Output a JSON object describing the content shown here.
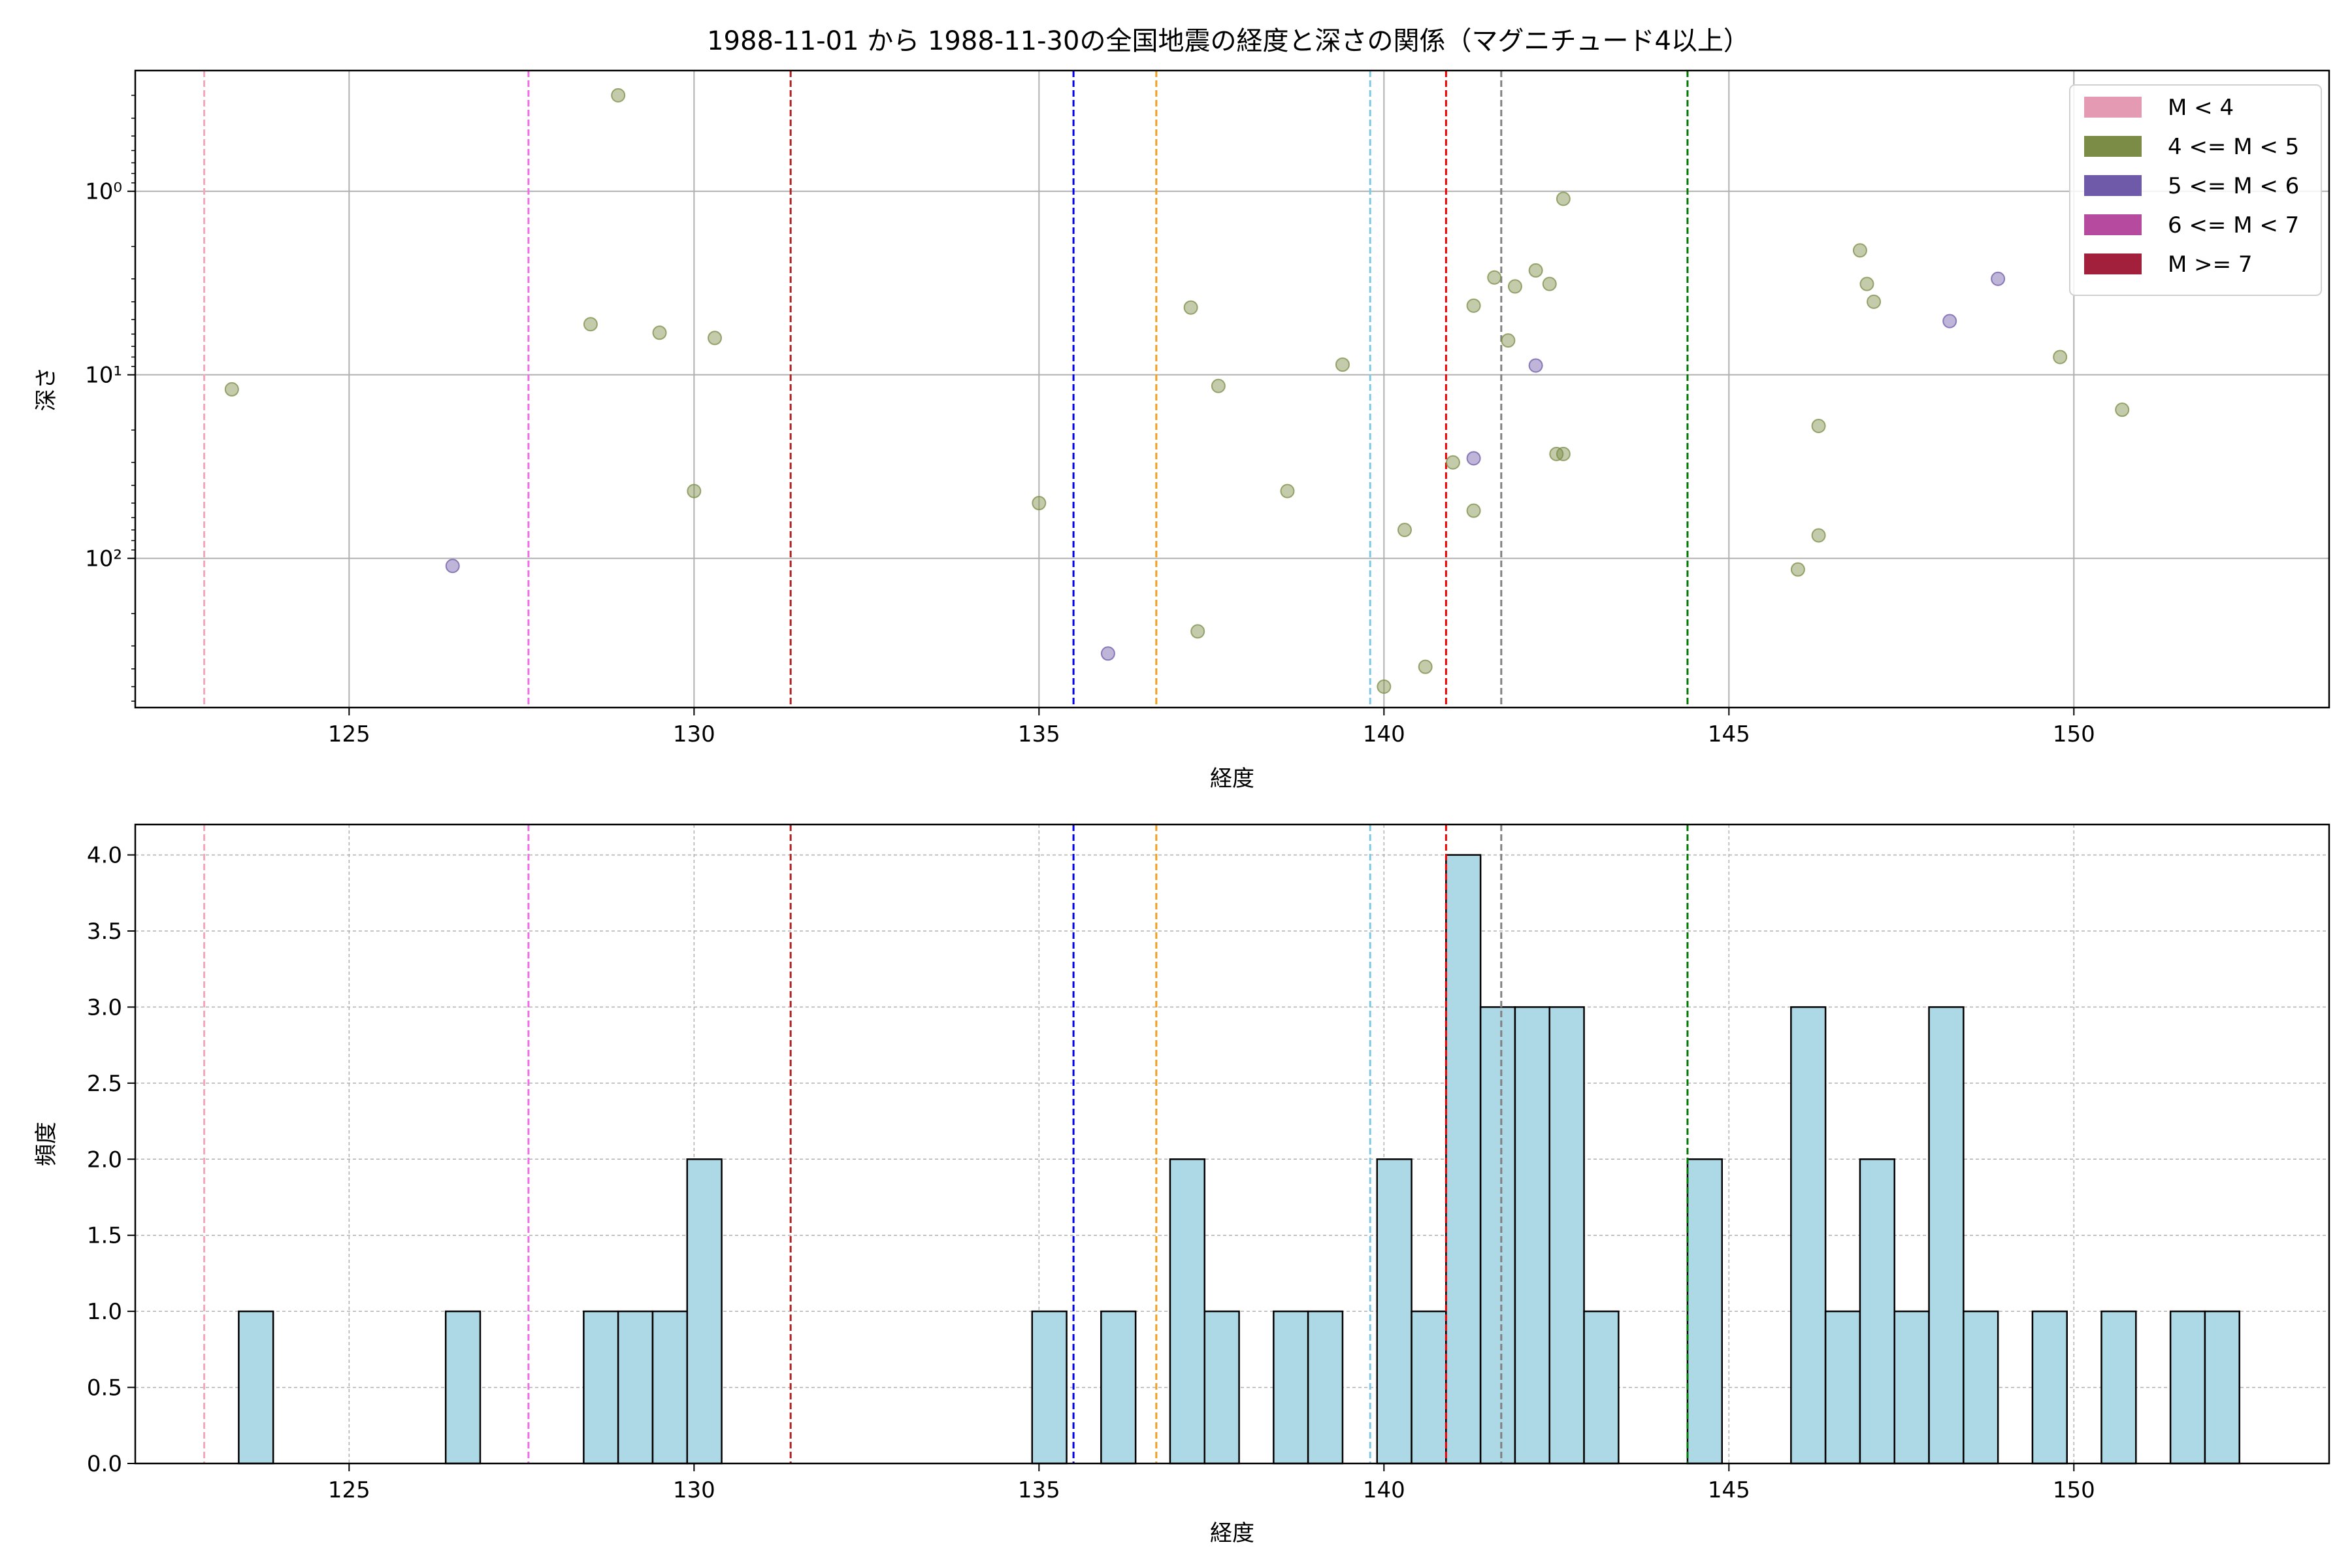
{
  "figure": {
    "title": "1988-11-01 から 1988-11-30の全国地震の経度と深さの関係（マグニチュード4以上）"
  },
  "colors": {
    "scatter_m4_5": "#7a8c45",
    "scatter_m5_6": "#6e5aa8",
    "hist_fill": "#add8e6",
    "hist_edge": "#000000"
  },
  "chart_data": [
    {
      "type": "scatter",
      "xlabel": "経度",
      "ylabel": "深さ",
      "xlim": [
        121.9,
        153.7
      ],
      "ylim": [
        650,
        0.22
      ],
      "y_scale": "log",
      "y_inverted": true,
      "x_ticks": [
        125,
        130,
        135,
        140,
        145,
        150
      ],
      "y_ticks": [
        {
          "value": 1,
          "label": "10⁰"
        },
        {
          "value": 10,
          "label": "10¹"
        },
        {
          "value": 100,
          "label": "10²"
        }
      ],
      "grid": true,
      "legend": {
        "placement": "top-right",
        "entries": [
          {
            "label": "M < 4",
            "color": "#e59ab3"
          },
          {
            "label": "4 <= M < 5",
            "color": "#7a8c45"
          },
          {
            "label": "5 <= M < 6",
            "color": "#6e5aa8"
          },
          {
            "label": "6 <= M < 7",
            "color": "#b54a9e"
          },
          {
            "label": "M >= 7",
            "color": "#a3203d"
          }
        ]
      },
      "vlines": [
        {
          "x": 122.9,
          "color": "#f4a6bb"
        },
        {
          "x": 127.6,
          "color": "#ee6ee6"
        },
        {
          "x": 131.4,
          "color": "#b22222"
        },
        {
          "x": 135.5,
          "color": "#0000ee"
        },
        {
          "x": 136.7,
          "color": "#f0a020"
        },
        {
          "x": 139.8,
          "color": "#7ec8e3"
        },
        {
          "x": 140.9,
          "color": "#ee0000"
        },
        {
          "x": 141.7,
          "color": "#808080"
        },
        {
          "x": 144.4,
          "color": "#007700"
        }
      ],
      "series": [
        {
          "class": "4 <= M < 5",
          "points": [
            [
              123.3,
              12
            ],
            [
              128.5,
              5.3
            ],
            [
              128.9,
              0.3
            ],
            [
              129.5,
              5.9
            ],
            [
              130.0,
              43
            ],
            [
              130.3,
              6.3
            ],
            [
              135.0,
              50
            ],
            [
              137.2,
              4.3
            ],
            [
              137.3,
              250
            ],
            [
              137.6,
              11.5
            ],
            [
              138.6,
              43
            ],
            [
              139.4,
              8.8
            ],
            [
              140.0,
              500
            ],
            [
              140.3,
              70
            ],
            [
              140.6,
              390
            ],
            [
              141.0,
              30
            ],
            [
              141.3,
              4.2
            ],
            [
              141.3,
              55
            ],
            [
              141.6,
              2.95
            ],
            [
              141.8,
              6.5
            ],
            [
              141.9,
              3.3
            ],
            [
              142.2,
              2.7
            ],
            [
              142.4,
              3.2
            ],
            [
              142.5,
              27
            ],
            [
              142.6,
              27
            ],
            [
              142.6,
              1.1
            ],
            [
              146.0,
              115
            ],
            [
              146.3,
              75
            ],
            [
              146.3,
              19
            ],
            [
              146.9,
              2.1
            ],
            [
              147.0,
              3.2
            ],
            [
              147.1,
              4.0
            ],
            [
              149.8,
              8.0
            ],
            [
              150.7,
              15.5
            ]
          ]
        },
        {
          "class": "5 <= M < 6",
          "points": [
            [
              126.5,
              110
            ],
            [
              136.0,
              330
            ],
            [
              141.3,
              28.5
            ],
            [
              142.2,
              8.9
            ],
            [
              148.2,
              5.1
            ],
            [
              148.9,
              3.0
            ]
          ]
        }
      ]
    },
    {
      "type": "bar",
      "xlabel": "経度",
      "ylabel": "頻度",
      "xlim": [
        121.9,
        153.7
      ],
      "ylim": [
        0,
        4.2
      ],
      "x_ticks": [
        125,
        130,
        135,
        140,
        145,
        150
      ],
      "y_ticks": [
        "0.0",
        "0.5",
        "1.0",
        "1.5",
        "2.0",
        "2.5",
        "3.0",
        "3.5",
        "4.0"
      ],
      "grid": true,
      "bin_width": 0.5,
      "bins": [
        {
          "x0": 123.4,
          "count": 1
        },
        {
          "x0": 126.4,
          "count": 1
        },
        {
          "x0": 128.4,
          "count": 1
        },
        {
          "x0": 128.9,
          "count": 1
        },
        {
          "x0": 129.4,
          "count": 1
        },
        {
          "x0": 129.9,
          "count": 2
        },
        {
          "x0": 134.9,
          "count": 1
        },
        {
          "x0": 135.9,
          "count": 1
        },
        {
          "x0": 136.9,
          "count": 2
        },
        {
          "x0": 137.4,
          "count": 1
        },
        {
          "x0": 138.4,
          "count": 1
        },
        {
          "x0": 138.9,
          "count": 1
        },
        {
          "x0": 139.9,
          "count": 2
        },
        {
          "x0": 140.4,
          "count": 1
        },
        {
          "x0": 140.9,
          "count": 4
        },
        {
          "x0": 141.4,
          "count": 3
        },
        {
          "x0": 141.9,
          "count": 3
        },
        {
          "x0": 142.4,
          "count": 3
        },
        {
          "x0": 142.9,
          "count": 1
        },
        {
          "x0": 144.4,
          "count": 2
        },
        {
          "x0": 145.9,
          "count": 3
        },
        {
          "x0": 146.4,
          "count": 1
        },
        {
          "x0": 146.9,
          "count": 2
        },
        {
          "x0": 147.4,
          "count": 1
        },
        {
          "x0": 147.9,
          "count": 3
        },
        {
          "x0": 148.4,
          "count": 1
        },
        {
          "x0": 149.4,
          "count": 1
        },
        {
          "x0": 150.4,
          "count": 1
        },
        {
          "x0": 151.4,
          "count": 1
        },
        {
          "x0": 151.9,
          "count": 1
        }
      ],
      "vlines": [
        {
          "x": 122.9,
          "color": "#f4a6bb"
        },
        {
          "x": 127.6,
          "color": "#ee6ee6"
        },
        {
          "x": 131.4,
          "color": "#b22222"
        },
        {
          "x": 135.5,
          "color": "#0000ee"
        },
        {
          "x": 136.7,
          "color": "#f0a020"
        },
        {
          "x": 139.8,
          "color": "#7ec8e3"
        },
        {
          "x": 140.9,
          "color": "#ee0000"
        },
        {
          "x": 141.7,
          "color": "#808080"
        },
        {
          "x": 144.4,
          "color": "#007700"
        }
      ]
    }
  ]
}
